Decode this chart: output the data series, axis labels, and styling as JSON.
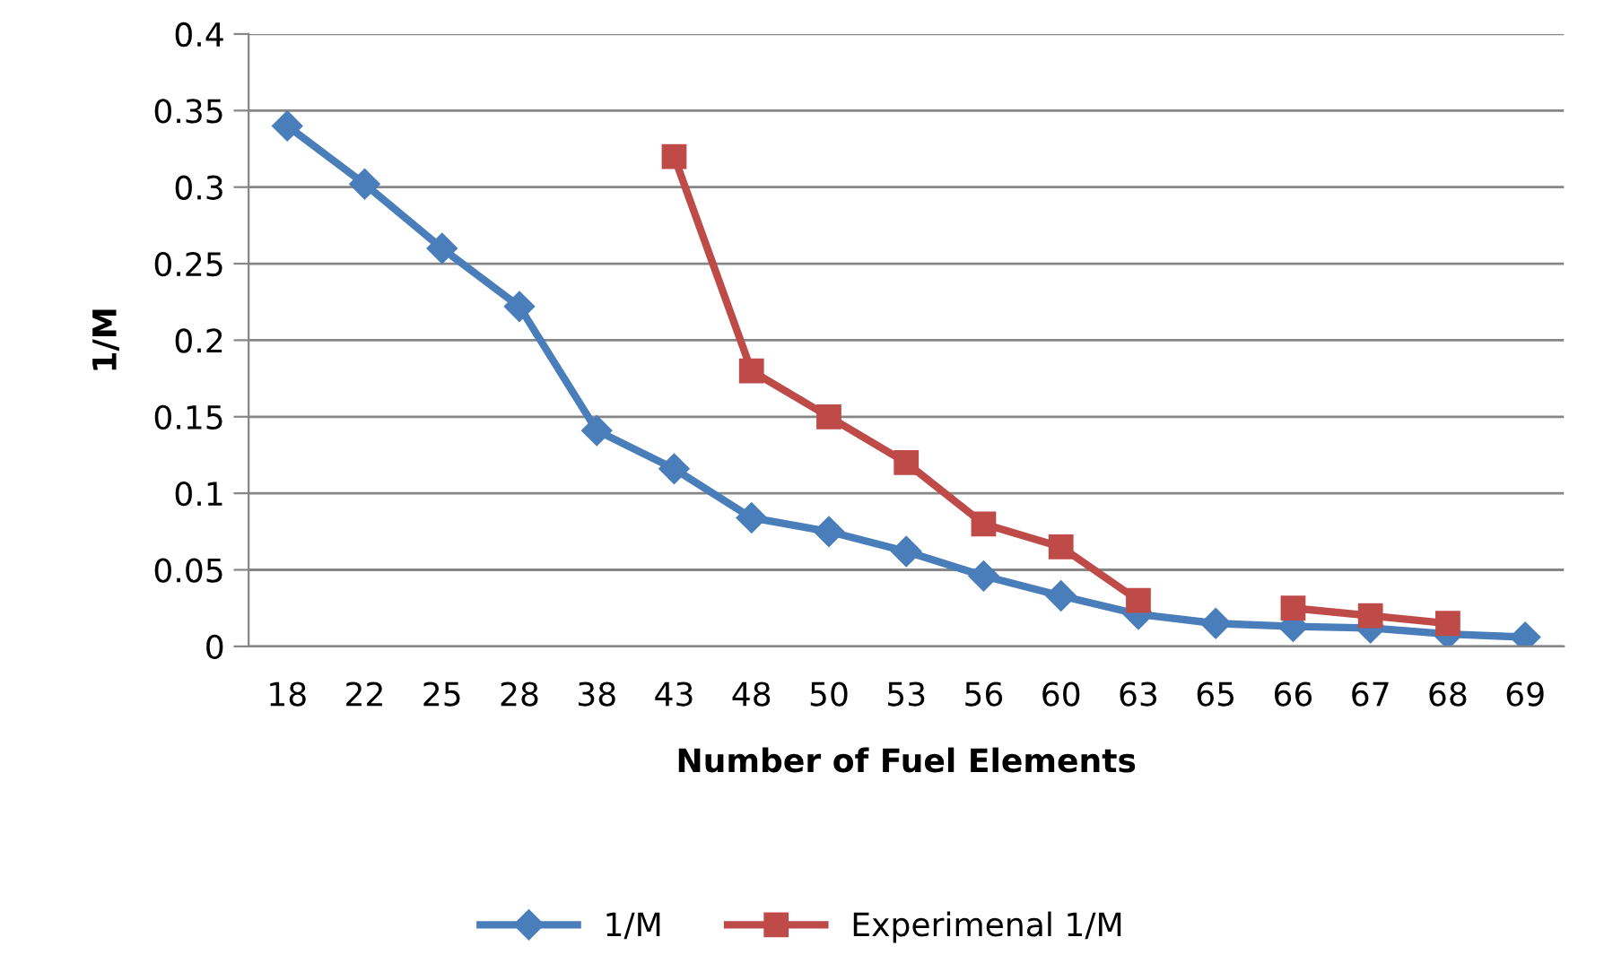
{
  "chart_data": {
    "type": "line",
    "xlabel": "Number of Fuel Elements",
    "ylabel": "1/M",
    "categories": [
      "18",
      "22",
      "25",
      "28",
      "38",
      "43",
      "48",
      "50",
      "53",
      "56",
      "60",
      "63",
      "65",
      "66",
      "67",
      "68",
      "69"
    ],
    "series": [
      {
        "name": "1/M",
        "color": "#4a7ebb",
        "marker": "diamond",
        "values": [
          0.34,
          0.302,
          0.26,
          0.222,
          0.141,
          0.116,
          0.084,
          0.075,
          0.062,
          0.046,
          0.033,
          0.021,
          0.015,
          0.013,
          0.012,
          0.008,
          0.006
        ]
      },
      {
        "name": "Experimenal 1/M",
        "color": "#be4b48",
        "marker": "square",
        "values": [
          null,
          null,
          null,
          null,
          null,
          0.32,
          0.18,
          0.15,
          0.12,
          0.08,
          0.065,
          0.03,
          null,
          0.025,
          0.02,
          0.015,
          null
        ]
      }
    ],
    "ylim": [
      0,
      0.4
    ],
    "yticks": [
      0,
      0.05,
      0.1,
      0.15,
      0.2,
      0.25,
      0.3,
      0.35,
      0.4
    ],
    "grid": "y",
    "legend": "bottom",
    "line_style": "solid"
  }
}
